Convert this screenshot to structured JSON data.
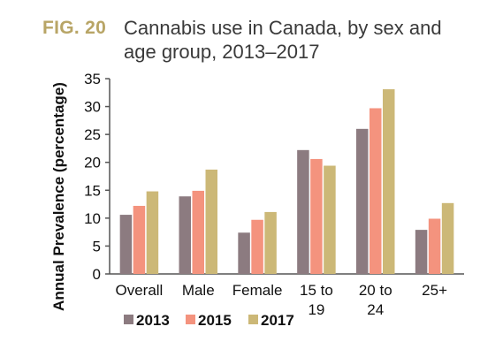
{
  "figure": {
    "label": "FIG. 20",
    "title": "Cannabis use in Canada, by sex and age group, 2013–2017"
  },
  "chart_data": {
    "type": "bar",
    "categories": [
      [
        "Overall"
      ],
      [
        "Male"
      ],
      [
        "Female"
      ],
      [
        "15 to",
        "19"
      ],
      [
        "20 to",
        "24"
      ],
      [
        "25+"
      ]
    ],
    "series": [
      {
        "name": "2013",
        "color": "#8c7b80",
        "values": [
          10.6,
          13.9,
          7.4,
          22.2,
          26.0,
          7.9
        ]
      },
      {
        "name": "2015",
        "color": "#f4937e",
        "values": [
          12.2,
          14.9,
          9.7,
          20.6,
          29.7,
          9.9
        ]
      },
      {
        "name": "2017",
        "color": "#ccb877",
        "values": [
          14.8,
          18.7,
          11.1,
          19.4,
          33.1,
          12.7
        ]
      }
    ],
    "ylabel": "Annual Prevalence (percentage)",
    "xlabel": "",
    "ylim": [
      0,
      35
    ],
    "yticks": [
      0,
      5,
      10,
      15,
      20,
      25,
      30,
      35
    ],
    "grid": false,
    "legend_position": "bottom"
  }
}
